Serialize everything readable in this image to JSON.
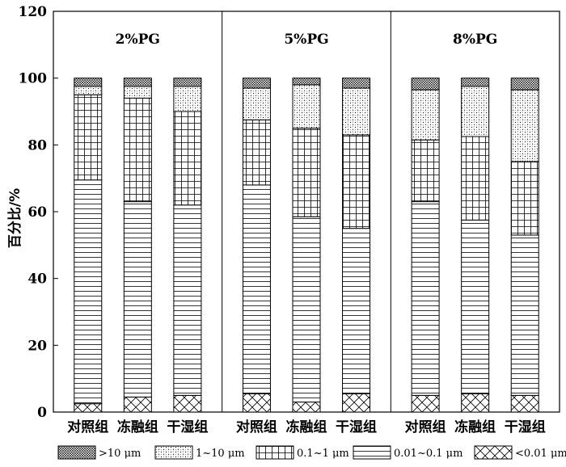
{
  "chart_data": {
    "type": "bar",
    "stacked": true,
    "ylabel": "百分比/%",
    "ylim": [
      0,
      120
    ],
    "yticks": [
      "0",
      "20",
      "40",
      "60",
      "80",
      "100",
      "120"
    ],
    "panels": [
      {
        "title": "2%PG",
        "categories": [
          "对照组",
          "冻融组",
          "干湿组"
        ],
        "series": [
          {
            "name": "<0.01 μm",
            "values": [
              2.5,
              4.5,
              5.0
            ]
          },
          {
            "name": "0.01~0.1 μm",
            "values": [
              67.0,
              58.5,
              57.0
            ]
          },
          {
            "name": "0.1~1 μm",
            "values": [
              25.5,
              31.0,
              28.0
            ]
          },
          {
            "name": "1~10 μm",
            "values": [
              2.5,
              3.5,
              7.5
            ]
          },
          {
            "name": ">10 μm",
            "values": [
              2.5,
              2.5,
              2.5
            ]
          }
        ]
      },
      {
        "title": "5%PG",
        "categories": [
          "对照组",
          "冻融组",
          "干湿组"
        ],
        "series": [
          {
            "name": "<0.01 μm",
            "values": [
              5.5,
              3.0,
              5.5
            ]
          },
          {
            "name": "0.01~0.1 μm",
            "values": [
              62.5,
              55.5,
              49.5
            ]
          },
          {
            "name": "0.1~1 μm",
            "values": [
              19.5,
              26.5,
              28.0
            ]
          },
          {
            "name": "1~10 μm",
            "values": [
              9.5,
              13.0,
              14.0
            ]
          },
          {
            "name": ">10 μm",
            "values": [
              3.0,
              2.0,
              3.0
            ]
          }
        ]
      },
      {
        "title": "8%PG",
        "categories": [
          "对照组",
          "冻融组",
          "干湿组"
        ],
        "series": [
          {
            "name": "<0.01 μm",
            "values": [
              5.0,
              5.5,
              5.0
            ]
          },
          {
            "name": "0.01~0.1 μm",
            "values": [
              58.0,
              52.0,
              48.0
            ]
          },
          {
            "name": "0.1~1 μm",
            "values": [
              18.5,
              25.0,
              22.0
            ]
          },
          {
            "name": "1~10 μm",
            "values": [
              15.0,
              15.0,
              21.5
            ]
          },
          {
            "name": ">10 μm",
            "values": [
              3.5,
              2.5,
              3.5
            ]
          }
        ]
      }
    ],
    "legend": {
      "placement": "bottom",
      "items": [
        ">10 μm",
        "1~10 μm",
        "0.1~1 μm",
        "0.01~0.1 μm",
        "<0.01 μm"
      ]
    },
    "patterns": {
      ">10 μm": "dense-crosshatch",
      "1~10 μm": "dots",
      "0.1~1 μm": "grid",
      "0.01~0.1 μm": "horizontal-lines",
      "<0.01 μm": "diagonal-cross"
    },
    "grid": false
  }
}
